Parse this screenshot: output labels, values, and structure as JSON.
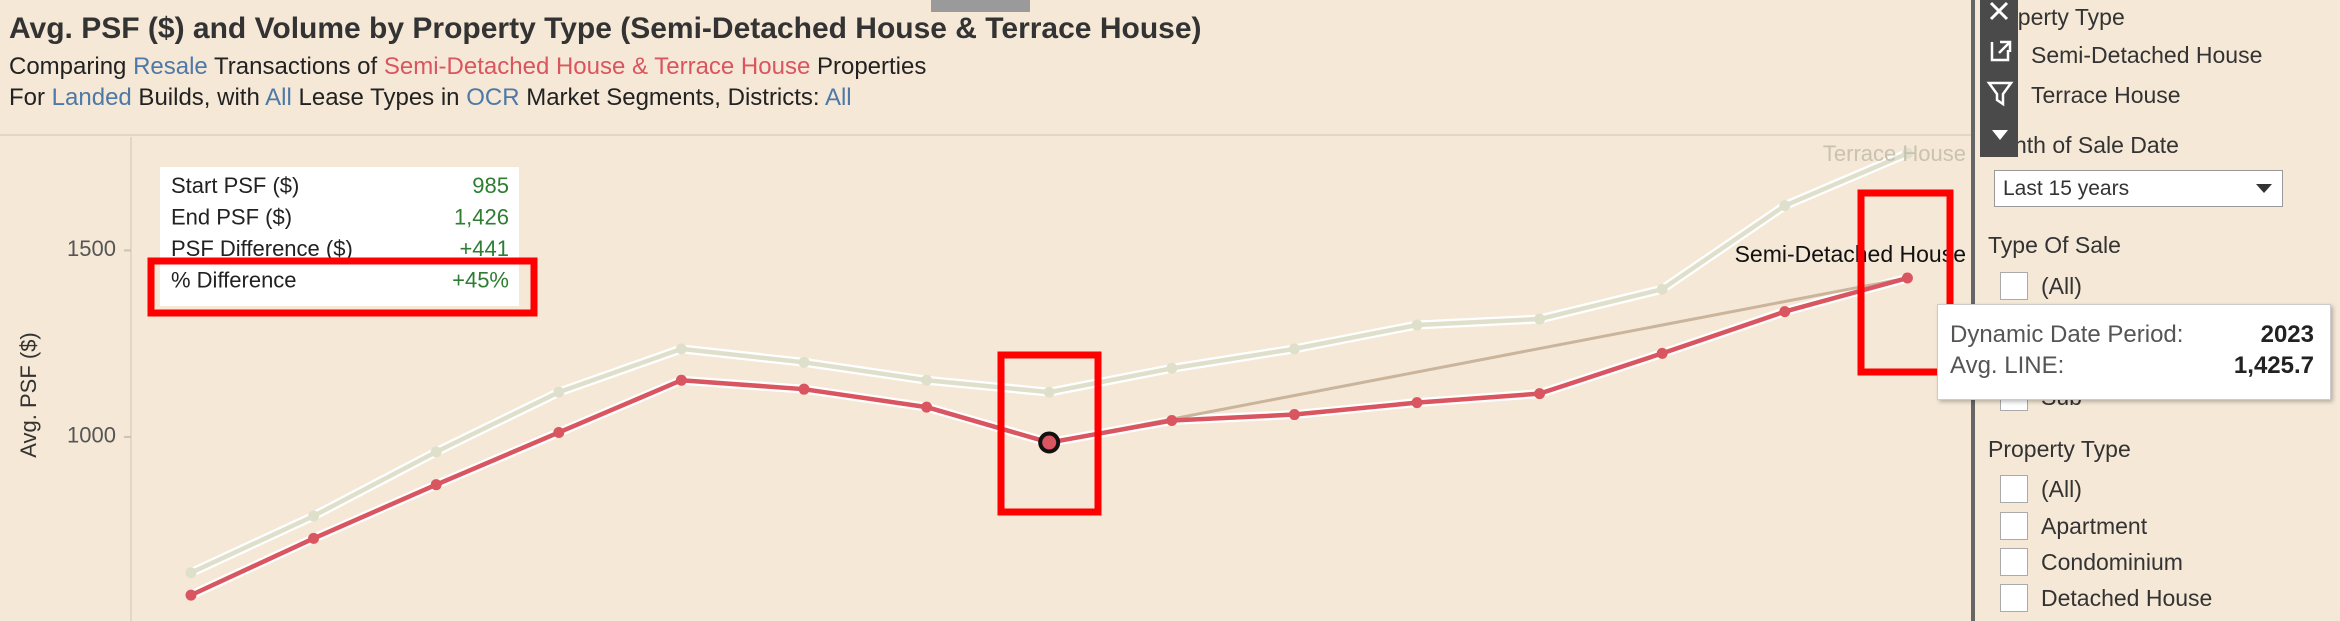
{
  "chart_data": {
    "type": "line",
    "title": "Avg. PSF ($) and Volume by Property Type (Semi-Detached House & Terrace House)",
    "subtitle": [
      {
        "text": "Comparing ",
        "color": "#222222"
      },
      {
        "text": "Resale",
        "color": "#4e79a7"
      },
      {
        "text": " Transactions of ",
        "color": "#222222"
      },
      {
        "text": "Semi-Detached House & Terrace House",
        "color": "#d9555f"
      },
      {
        "text": " Properties",
        "color": "#222222"
      }
    ],
    "subtitle2": [
      {
        "text": "For ",
        "color": "#222222"
      },
      {
        "text": "Landed",
        "color": "#4e79a7"
      },
      {
        "text": " Builds, with ",
        "color": "#222222"
      },
      {
        "text": "All",
        "color": "#4e79a7"
      },
      {
        "text": " Lease Types in ",
        "color": "#222222"
      },
      {
        "text": "OCR",
        "color": "#4e79a7"
      },
      {
        "text": " Market Segments, Districts: ",
        "color": "#222222"
      },
      {
        "text": "All",
        "color": "#4e79a7"
      }
    ],
    "y_label": "Avg. PSF ($)",
    "categories": [
      null,
      null,
      null,
      null,
      null,
      null,
      null,
      null,
      null,
      null,
      null,
      null,
      null,
      null,
      null
    ],
    "series": [
      {
        "name": "Terrace House",
        "color": "#dfe0cc",
        "values": [
          636,
          788,
          960,
          1120,
          1236,
          1200,
          1152,
          1120,
          1184,
          1236,
          1300,
          1316,
          1396,
          1620,
          1760
        ]
      },
      {
        "name": "Semi-Detached House",
        "color": "#d9555f",
        "values": [
          576,
          728,
          872,
          1012,
          1152,
          1128,
          1080,
          985,
          1044,
          1060,
          1092,
          1116,
          1224,
          1336,
          1426
        ]
      }
    ],
    "ylim": [
      520,
      1804
    ],
    "yticks": [
      1000,
      1500
    ],
    "trend_color": "#cbb49c",
    "selected_point": 7,
    "summary": [
      {
        "label": "Start PSF ($)",
        "value": "985"
      },
      {
        "label": "End PSF ($)",
        "value": "1,426"
      },
      {
        "label": "PSF Difference ($)",
        "value": "+441"
      },
      {
        "label": "% Difference",
        "value": "+45%"
      }
    ],
    "tooltip": [
      {
        "label": "Dynamic Date Period:",
        "value": "2023"
      },
      {
        "label": "Avg. LINE:",
        "value": "1,425.7"
      }
    ]
  },
  "filters": {
    "legend_title": "Property Type",
    "legend_items": [
      "Semi-Detached House",
      "Terrace House"
    ],
    "date_title": "Month of Sale Date",
    "date_value": "Last 15 years",
    "sale_title": "Type Of Sale",
    "sale_items": [
      "(All)",
      "Sub"
    ],
    "type_title": "Property Type",
    "type_items": [
      "(All)",
      "Apartment",
      "Condominium",
      "Detached House"
    ]
  }
}
